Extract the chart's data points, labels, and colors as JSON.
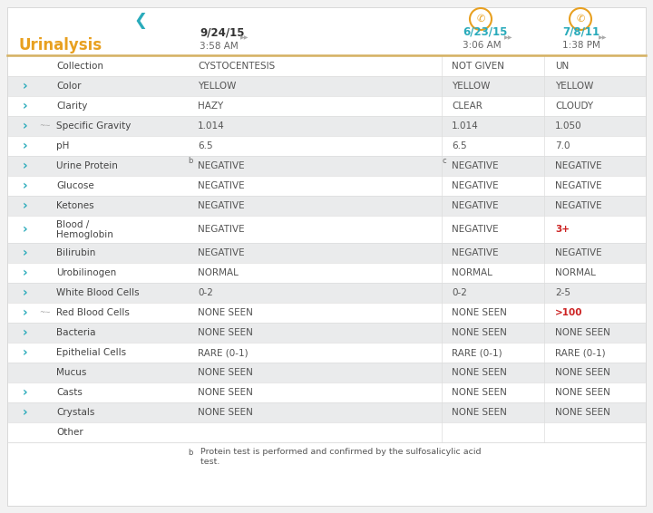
{
  "title": "Urinalysis",
  "title_color": "#E8A020",
  "bg_color": "#F2F2F2",
  "panel_bg": "#FFFFFF",
  "header_line_color": "#D4B060",
  "col1_date": "9/24/15",
  "col1_time": "3:58 AM",
  "col2_date": "6/23/15",
  "col2_time": "3:06 AM",
  "col3_date": "7/8/11",
  "col3_time": "1:38 PM",
  "col2_date_color": "#2AABBB",
  "col3_date_color": "#2AABBB",
  "clip_icon_color": "#E8A020",
  "arrow_color": "#2AABBB",
  "shade_color": "#EAEBEC",
  "divider_color": "#DDDDDD",
  "label_color": "#444444",
  "value_color": "#555555",
  "red_color": "#CC2222",
  "rows": [
    {
      "label": "Collection",
      "has_arrow": false,
      "has_wave": false,
      "col1": "CYSTOCENTESIS",
      "col2": "NOT GIVEN",
      "col3": "UN",
      "col2_color": "#555555",
      "col3_color": "#555555",
      "shade": false,
      "double_line": false
    },
    {
      "label": "Color",
      "has_arrow": true,
      "has_wave": false,
      "col1": "YELLOW",
      "col2": "YELLOW",
      "col3": "YELLOW",
      "col2_color": "#555555",
      "col3_color": "#555555",
      "shade": true,
      "double_line": false
    },
    {
      "label": "Clarity",
      "has_arrow": true,
      "has_wave": false,
      "col1": "HAZY",
      "col2": "CLEAR",
      "col3": "CLOUDY",
      "col2_color": "#555555",
      "col3_color": "#555555",
      "shade": false,
      "double_line": false
    },
    {
      "label": "Specific Gravity",
      "has_arrow": true,
      "has_wave": true,
      "col1": "1.014",
      "col2": "1.014",
      "col3": "1.050",
      "col2_color": "#555555",
      "col3_color": "#555555",
      "shade": true,
      "double_line": false
    },
    {
      "label": "pH",
      "has_arrow": true,
      "has_wave": false,
      "col1": "6.5",
      "col2": "6.5",
      "col3": "7.0",
      "col2_color": "#555555",
      "col3_color": "#555555",
      "shade": false,
      "double_line": false
    },
    {
      "label": "Urine Protein",
      "has_arrow": true,
      "has_wave": false,
      "col1": "NEGATIVE",
      "col2": "NEGATIVE",
      "col3": "NEGATIVE",
      "col2_color": "#555555",
      "col3_color": "#555555",
      "shade": true,
      "double_line": false,
      "col1_sup": "b",
      "col2_sup": "c"
    },
    {
      "label": "Glucose",
      "has_arrow": true,
      "has_wave": false,
      "col1": "NEGATIVE",
      "col2": "NEGATIVE",
      "col3": "NEGATIVE",
      "col2_color": "#555555",
      "col3_color": "#555555",
      "shade": false,
      "double_line": false
    },
    {
      "label": "Ketones",
      "has_arrow": true,
      "has_wave": false,
      "col1": "NEGATIVE",
      "col2": "NEGATIVE",
      "col3": "NEGATIVE",
      "col2_color": "#555555",
      "col3_color": "#555555",
      "shade": true,
      "double_line": false
    },
    {
      "label": "Blood /",
      "has_arrow": true,
      "has_wave": false,
      "col1": "NEGATIVE",
      "col2": "NEGATIVE",
      "col3": "3+",
      "col2_color": "#555555",
      "col3_color": "#CC2222",
      "shade": false,
      "double_line": true,
      "label2": "Hemoglobin"
    },
    {
      "label": "Bilirubin",
      "has_arrow": true,
      "has_wave": false,
      "col1": "NEGATIVE",
      "col2": "NEGATIVE",
      "col3": "NEGATIVE",
      "col2_color": "#555555",
      "col3_color": "#555555",
      "shade": true,
      "double_line": false
    },
    {
      "label": "Urobilinogen",
      "has_arrow": true,
      "has_wave": false,
      "col1": "NORMAL",
      "col2": "NORMAL",
      "col3": "NORMAL",
      "col2_color": "#555555",
      "col3_color": "#555555",
      "shade": false,
      "double_line": false
    },
    {
      "label": "White Blood Cells",
      "has_arrow": true,
      "has_wave": false,
      "col1": "0-2",
      "col2": "0-2",
      "col3": "2-5",
      "col2_color": "#555555",
      "col3_color": "#555555",
      "shade": true,
      "double_line": false
    },
    {
      "label": "Red Blood Cells",
      "has_arrow": true,
      "has_wave": true,
      "col1": "NONE SEEN",
      "col2": "NONE SEEN",
      "col3": ">100",
      "col2_color": "#555555",
      "col3_color": "#CC2222",
      "shade": false,
      "double_line": false
    },
    {
      "label": "Bacteria",
      "has_arrow": true,
      "has_wave": false,
      "col1": "NONE SEEN",
      "col2": "NONE SEEN",
      "col3": "NONE SEEN",
      "col2_color": "#555555",
      "col3_color": "#555555",
      "shade": true,
      "double_line": false
    },
    {
      "label": "Epithelial Cells",
      "has_arrow": true,
      "has_wave": false,
      "col1": "RARE (0-1)",
      "col2": "RARE (0-1)",
      "col3": "RARE (0-1)",
      "col2_color": "#555555",
      "col3_color": "#555555",
      "shade": false,
      "double_line": false
    },
    {
      "label": "Mucus",
      "has_arrow": false,
      "has_wave": false,
      "col1": "NONE SEEN",
      "col2": "NONE SEEN",
      "col3": "NONE SEEN",
      "col2_color": "#555555",
      "col3_color": "#555555",
      "shade": true,
      "double_line": false
    },
    {
      "label": "Casts",
      "has_arrow": true,
      "has_wave": false,
      "col1": "NONE SEEN",
      "col2": "NONE SEEN",
      "col3": "NONE SEEN",
      "col2_color": "#555555",
      "col3_color": "#555555",
      "shade": false,
      "double_line": false
    },
    {
      "label": "Crystals",
      "has_arrow": true,
      "has_wave": false,
      "col1": "NONE SEEN",
      "col2": "NONE SEEN",
      "col3": "NONE SEEN",
      "col2_color": "#555555",
      "col3_color": "#555555",
      "shade": true,
      "double_line": false
    },
    {
      "label": "Other",
      "has_arrow": false,
      "has_wave": false,
      "col1": "",
      "col2": "",
      "col3": "",
      "col2_color": "#555555",
      "col3_color": "#555555",
      "shade": false,
      "double_line": false
    }
  ],
  "footnote_b": "b",
  "footnote_text": "  Protein test is performed and confirmed by the sulfosalicylic acid\n  test."
}
